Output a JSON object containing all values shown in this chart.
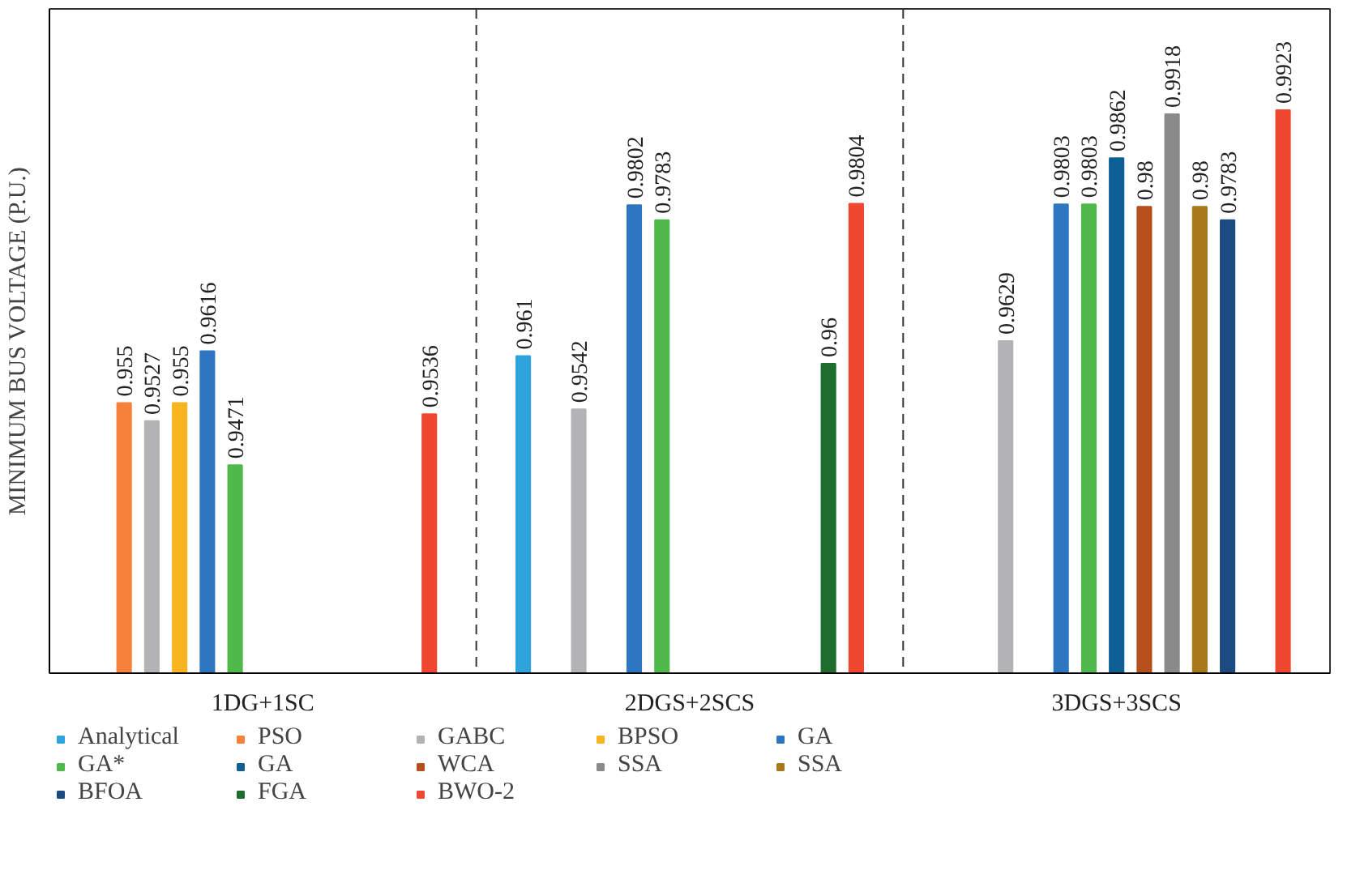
{
  "chart_data": {
    "type": "bar",
    "ylabel": "MINIMUM BUS VOLTAGE (P.U.)",
    "categories": [
      "1DG+1SC",
      "2DGS+2SCS",
      "3DGS+3SCS"
    ],
    "ylim": [
      0.9206,
      1.0052
    ],
    "data_labels": true,
    "grid": false,
    "legend": "bottom",
    "series": [
      {
        "name": "Analytical",
        "color": "#2ea3dc",
        "values": [
          null,
          0.961,
          null
        ]
      },
      {
        "name": "PSO",
        "color": "#f5813a",
        "values": [
          0.955,
          null,
          null
        ]
      },
      {
        "name": "GABC",
        "color": "#b3b3b5",
        "values": [
          0.9527,
          0.9542,
          0.9629
        ]
      },
      {
        "name": "BPSO",
        "color": "#f9b421",
        "values": [
          0.955,
          null,
          null
        ]
      },
      {
        "name": "GA",
        "color": "#2e77c0",
        "values": [
          0.9616,
          0.9802,
          0.9803
        ]
      },
      {
        "name": "GA*",
        "color": "#4fb94a",
        "values": [
          0.9471,
          0.9783,
          0.9803
        ]
      },
      {
        "name": "GA",
        "color": "#0e5f96",
        "values": [
          null,
          null,
          0.9862
        ]
      },
      {
        "name": "WCA",
        "color": "#b5501c",
        "values": [
          null,
          null,
          0.98
        ]
      },
      {
        "name": "SSA",
        "color": "#8a8a8a",
        "values": [
          null,
          null,
          0.9918
        ]
      },
      {
        "name": "SSA",
        "color": "#a8781a",
        "values": [
          null,
          null,
          0.98
        ]
      },
      {
        "name": "BFOA",
        "color": "#1b4b80",
        "values": [
          null,
          null,
          0.9783
        ]
      },
      {
        "name": "FGA",
        "color": "#1e6d2e",
        "values": [
          null,
          0.96,
          null
        ]
      },
      {
        "name": "BWO-2",
        "color": "#ef4830",
        "values": [
          0.9536,
          0.9804,
          0.9923
        ]
      }
    ]
  }
}
